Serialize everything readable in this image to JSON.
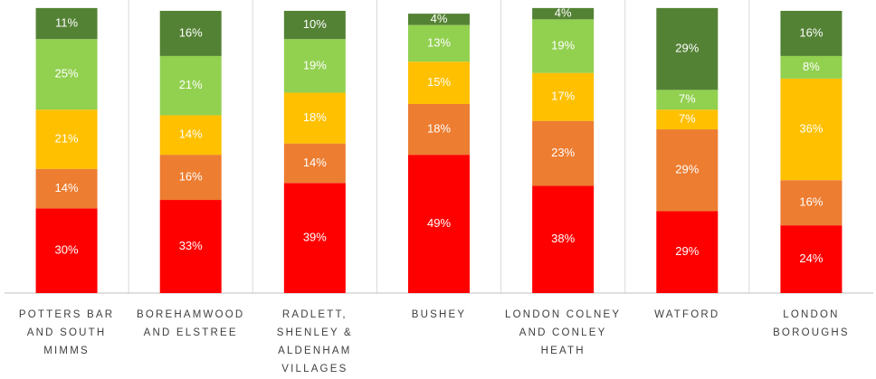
{
  "chart_data": {
    "type": "stacked_bar",
    "categories": [
      "POTTERS BAR AND SOUTH MIMMS",
      "BOREHAMWOOD AND ELSTREE",
      "RADLETT, SHENLEY & ALDENHAM VILLAGES",
      "BUSHEY",
      "LONDON COLNEY AND CONLEY HEATH",
      "WATFORD",
      "LONDON BOROUGHS"
    ],
    "series": [
      {
        "color": "#ff0000",
        "values": [
          30,
          33,
          39,
          49,
          38,
          29,
          24
        ],
        "value_labels": [
          "30%",
          "33%",
          "39%",
          "49%",
          "38%",
          "29%",
          "24%"
        ]
      },
      {
        "color": "#ed7d31",
        "values": [
          14,
          16,
          14,
          18,
          23,
          29,
          16
        ],
        "value_labels": [
          "14%",
          "16%",
          "14%",
          "18%",
          "23%",
          "29%",
          "16%"
        ]
      },
      {
        "color": "#ffc000",
        "values": [
          21,
          14,
          18,
          15,
          17,
          7,
          36
        ],
        "value_labels": [
          "21%",
          "14%",
          "18%",
          "15%",
          "17%",
          "7%",
          "36%"
        ]
      },
      {
        "color": "#92d050",
        "values": [
          25,
          21,
          19,
          13,
          19,
          7,
          8
        ],
        "value_labels": [
          "25%",
          "21%",
          "19%",
          "13%",
          "19%",
          "7%",
          "8%"
        ]
      },
      {
        "color": "#548235",
        "values": [
          11,
          16,
          10,
          4,
          4,
          29,
          16
        ],
        "value_labels": [
          "11%",
          "16%",
          "10%",
          "4%",
          "4%",
          "29%",
          "16%"
        ]
      }
    ],
    "ylim": [
      0,
      100
    ]
  }
}
